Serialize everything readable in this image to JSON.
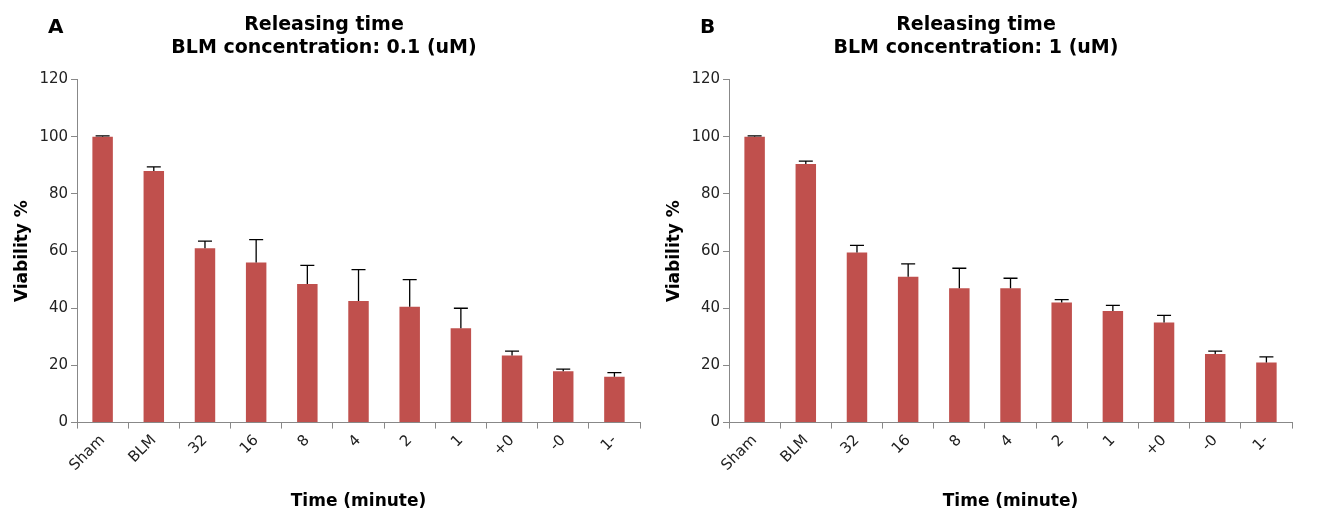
{
  "chart_data": [
    {
      "type": "bar",
      "title": "Releasing time\nBLM concentration: 0.1 (uM)",
      "xlabel": "Time (minute)",
      "ylabel": "Viability %",
      "annotations": [
        "A"
      ],
      "categories": [
        "Sham",
        "BLM",
        "32",
        "16",
        "8",
        "4",
        "2",
        "1",
        "+0",
        "-0",
        "1-"
      ],
      "values": [
        100,
        88,
        61,
        56,
        48.5,
        42.5,
        40.5,
        33,
        23.5,
        18,
        16
      ],
      "color": "#c0504d",
      "errors": [
        [
          100,
          100.3
        ],
        [
          88,
          89.5
        ],
        [
          61,
          63.5
        ],
        [
          56,
          64
        ],
        [
          48.5,
          55
        ],
        [
          42.5,
          53.5
        ],
        [
          40.5,
          50
        ],
        [
          33,
          40
        ],
        [
          23.5,
          25
        ],
        [
          18,
          18.7
        ],
        [
          16,
          17.5
        ]
      ],
      "ylim": [
        0,
        120
      ],
      "yticks": [
        0,
        20,
        40,
        60,
        80,
        100,
        120
      ],
      "grid": false,
      "legend": false
    },
    {
      "type": "bar",
      "title": "Releasing time\nBLM concentration: 1 (uM)",
      "xlabel": "Time (minute)",
      "ylabel": "Viability %",
      "annotations": [
        "B"
      ],
      "categories": [
        "Sham",
        "BLM",
        "32",
        "16",
        "8",
        "4",
        "2",
        "1",
        "+0",
        "-0",
        "1-"
      ],
      "values": [
        100,
        90.5,
        59.5,
        51,
        47,
        47,
        42,
        39,
        35,
        24,
        21
      ],
      "color": "#c0504d",
      "errors": [
        [
          100,
          100.3
        ],
        [
          90.5,
          91.5
        ],
        [
          59.5,
          62
        ],
        [
          51,
          55.5
        ],
        [
          47,
          54
        ],
        [
          47,
          50.5
        ],
        [
          42,
          43
        ],
        [
          39,
          41
        ],
        [
          35,
          37.5
        ],
        [
          24,
          25
        ],
        [
          21,
          23
        ]
      ],
      "ylim": [
        0,
        120
      ],
      "yticks": [
        0,
        20,
        40,
        60,
        80,
        100,
        120
      ],
      "grid": false,
      "legend": false
    }
  ]
}
